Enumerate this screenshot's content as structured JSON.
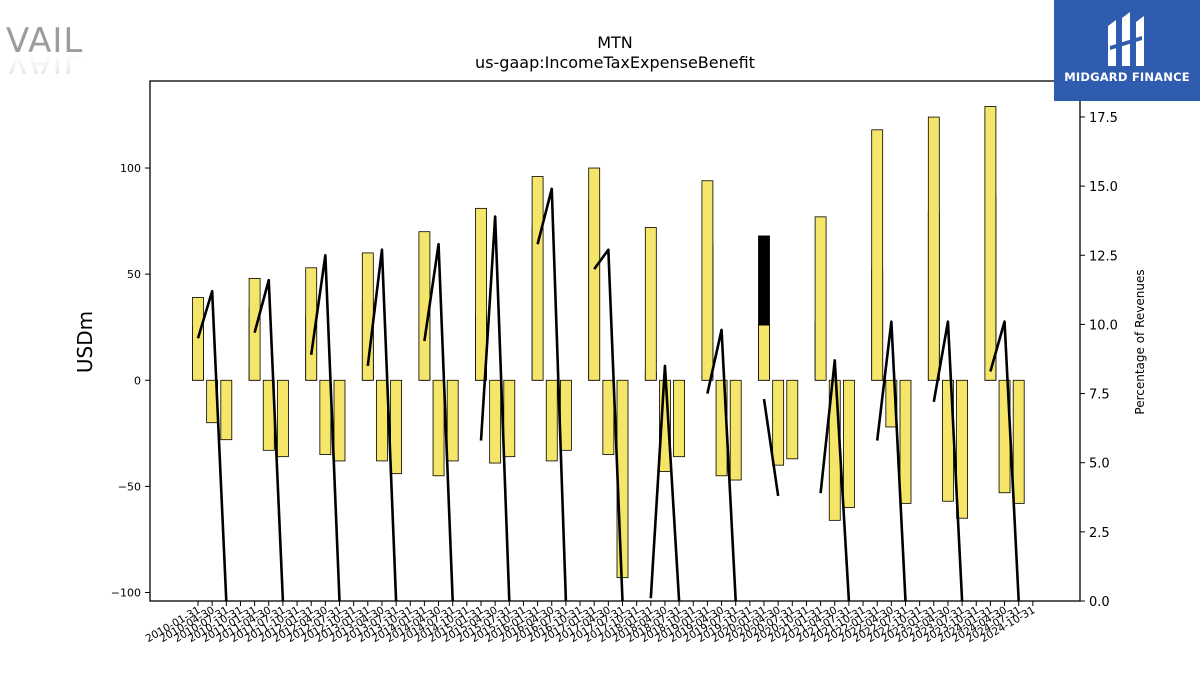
{
  "branding": {
    "left_logo": "VAIL",
    "right_logo": "MIDGARD FINANCE",
    "right_logo_color": "#2f5caf"
  },
  "chart_data": {
    "type": "bar",
    "title": "MTN",
    "subtitle": "us-gaap:IncomeTaxExpenseBenefit",
    "ylabel": "USDm",
    "ylabel_right": "Percentage of Revenues",
    "ylim": [
      -104,
      141
    ],
    "ylim_right": [
      0,
      18.8
    ],
    "yticks": [
      -100,
      -50,
      0,
      50,
      100
    ],
    "yticks_right": [
      "0.0",
      "2.5",
      "5.0",
      "7.5",
      "10.0",
      "12.5",
      "15.0",
      "17.5"
    ],
    "bar_colors": {
      "annual": "#000000",
      "quarterly": "#f5e66a"
    },
    "line_color": "#000000",
    "categories": [
      "2010-01-31",
      "2010-04-30",
      "2010-07-31",
      "2010-10-31",
      "2011-01-31",
      "2011-04-30",
      "2011-07-31",
      "2011-10-31",
      "2012-01-31",
      "2012-04-30",
      "2012-07-31",
      "2012-10-31",
      "2013-01-31",
      "2013-04-30",
      "2013-07-31",
      "2013-10-31",
      "2014-01-31",
      "2014-04-30",
      "2014-07-31",
      "2014-10-31",
      "2015-01-31",
      "2015-04-30",
      "2015-07-31",
      "2015-10-31",
      "2016-01-31",
      "2016-04-30",
      "2016-07-31",
      "2016-10-31",
      "2017-01-31",
      "2017-04-30",
      "2017-07-31",
      "2017-10-31",
      "2018-01-31",
      "2018-04-30",
      "2018-07-31",
      "2018-10-31",
      "2019-01-31",
      "2019-04-30",
      "2019-07-31",
      "2019-10-31",
      "2020-01-31",
      "2020-04-30",
      "2020-07-31",
      "2020-10-31",
      "2021-01-31",
      "2021-04-30",
      "2021-07-31",
      "2021-10-31",
      "2022-01-31",
      "2022-04-30",
      "2022-07-31",
      "2022-10-31",
      "2023-01-31",
      "2023-04-30",
      "2023-07-31",
      "2023-10-31",
      "2024-01-31",
      "2024-04-30",
      "2024-07-31",
      "2024-10-31"
    ],
    "series": [
      {
        "values": [
          25,
          null,
          null,
          null,
          34,
          null,
          null,
          null,
          30,
          null,
          null,
          null,
          37,
          null,
          null,
          null,
          36,
          null,
          null,
          null,
          31,
          null,
          null,
          null,
          72,
          null,
          null,
          null,
          85,
          null,
          null,
          null,
          4,
          null,
          null,
          null,
          64,
          null,
          null,
          null,
          68,
          null,
          null,
          null,
          27,
          null,
          null,
          null,
          52,
          null,
          null,
          null,
          79,
          null,
          null,
          null,
          87,
          null,
          null,
          null
        ]
      },
      {
        "values": [
          39,
          -20,
          -28,
          null,
          48,
          -33,
          -36,
          null,
          53,
          -35,
          -38,
          null,
          60,
          -38,
          -44,
          null,
          70,
          -45,
          -38,
          null,
          81,
          -39,
          -36,
          null,
          96,
          -38,
          -33,
          null,
          100,
          -35,
          -93,
          null,
          72,
          -43,
          -36,
          null,
          94,
          -45,
          -47,
          null,
          26,
          -40,
          -37,
          null,
          77,
          -66,
          -60,
          null,
          118,
          -22,
          -58,
          null,
          124,
          -57,
          -65,
          null,
          129,
          -53,
          -58,
          null
        ]
      },
      {
        "values": [
          9.5,
          11.2,
          0,
          null,
          9.7,
          11.6,
          0,
          null,
          8.9,
          12.5,
          0,
          null,
          8.5,
          12.7,
          0,
          null,
          9.4,
          12.9,
          0,
          null,
          5.8,
          13.9,
          0,
          null,
          12.9,
          14.9,
          0,
          null,
          12.0,
          12.7,
          0,
          null,
          0.1,
          8.5,
          0,
          null,
          7.5,
          9.8,
          0,
          null,
          7.3,
          3.8,
          null,
          null,
          3.9,
          8.7,
          0,
          null,
          5.8,
          10.1,
          0,
          null,
          7.2,
          10.1,
          0,
          null,
          8.3,
          10.1,
          0,
          null
        ]
      }
    ]
  }
}
